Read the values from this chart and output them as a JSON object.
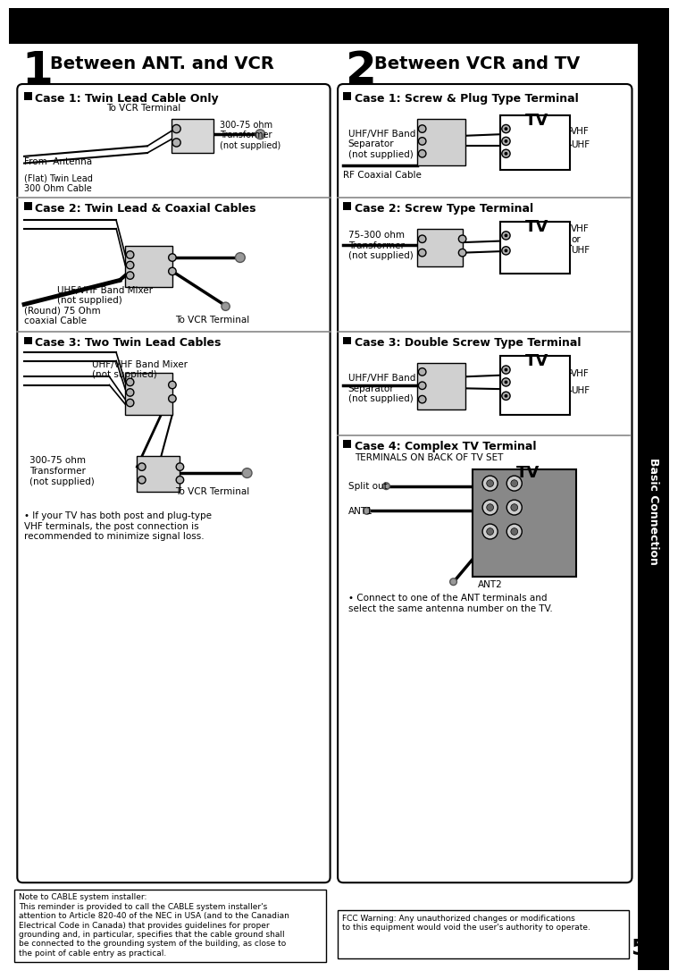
{
  "bg_color": "#ffffff",
  "page_num": "5",
  "sidebar_text": "Basic Connection",
  "section1_num": "1",
  "section1_title": "Between ANT. and VCR",
  "section2_num": "2",
  "section2_title": "Between VCR and TV",
  "case1L": "Case 1: Twin Lead Cable Only",
  "case2L": "Case 2: Twin Lead & Coaxial Cables",
  "case3L": "Case 3: Two Twin Lead Cables",
  "case1R": "Case 1: Screw & Plug Type Terminal",
  "case2R": "Case 2: Screw Type Terminal",
  "case3R": "Case 3: Double Screw Type Terminal",
  "case4R": "Case 4: Complex TV Terminal",
  "terminals_label": "TERMINALS ON BACK OF TV SET",
  "note_left": "If your TV has both post and plug-type\nVHF terminals, the post connection is\nrecommended to minimize signal loss.",
  "note_right": "Connect to one of the ANT terminals and\nselect the same antenna number on the TV.",
  "footer_left": "Note to CABLE system installer:\nThis reminder is provided to call the CABLE system installer's\nattention to Article 820-40 of the NEC in USA (and to the Canadian\nElectrical Code in Canada) that provides guidelines for proper\ngrounding and, in particular, specifies that the cable ground shall\nbe connected to the grounding system of the building, as close to\nthe point of cable entry as practical.",
  "footer_right": "FCC Warning: Any unauthorized changes or modifications\nto this equipment would void the user's authority to operate."
}
